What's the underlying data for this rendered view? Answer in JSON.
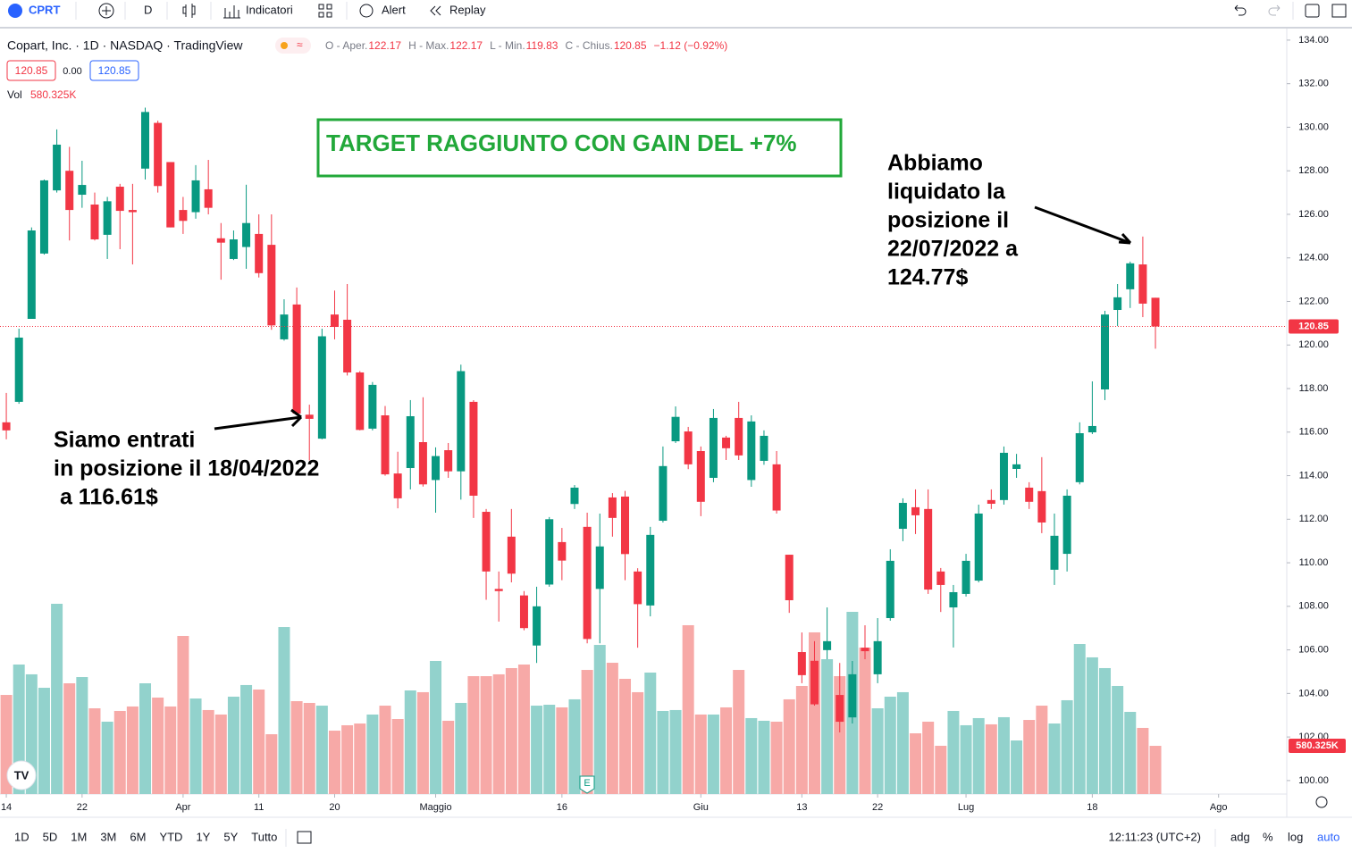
{
  "toolbar": {
    "symbol": "CPRT",
    "interval": "D",
    "indicators": "Indicatori",
    "alert": "Alert",
    "replay": "Replay"
  },
  "legend": {
    "title": "Copart, Inc. · 1D · NASDAQ · TradingView",
    "ohlc": [
      {
        "label": "O - Aper.",
        "value": "122.17"
      },
      {
        "label": "H - Max.",
        "value": "122.17"
      },
      {
        "label": "L - Min.",
        "value": "119.83"
      },
      {
        "label": "C - Chius.",
        "value": "120.85"
      },
      {
        "label": "",
        "value": "−1.12 (−0.92%)"
      }
    ],
    "bid": "120.85",
    "spread": "0.00",
    "ask": "120.85",
    "volume_title": "Vol"
  },
  "bottom_bar": {
    "ranges": [
      "1D",
      "5D",
      "1M",
      "3M",
      "6M",
      "YTD",
      "1Y",
      "5Y",
      "Tutto"
    ],
    "clock": "12:11:23 (UTC+2)",
    "options": [
      "adg",
      "%",
      "log",
      "auto"
    ]
  },
  "chart_data": {
    "type": "candlestick",
    "up_color": "#089981",
    "down_color": "#f23645",
    "volume_up_color": "#92d2cc",
    "volume_down_color": "#f7a9a7",
    "open": [
      116.45,
      117.39,
      121.2,
      124.2,
      127.1,
      128.0,
      126.9,
      126.45,
      125.06,
      127.27,
      126.2,
      128.1,
      130.2,
      128.4,
      126.2,
      126.1,
      127.15,
      124.9,
      123.95,
      124.5,
      125.1,
      124.6,
      120.26,
      121.86,
      116.8,
      115.7,
      121.4,
      121.16,
      118.74,
      116.16,
      116.77,
      114.1,
      114.35,
      115.54,
      113.8,
      115.17,
      114.2,
      117.39,
      112.34,
      108.8,
      111.2,
      108.5,
      106.2,
      109.0,
      110.95,
      112.7,
      111.65,
      108.8,
      113.0,
      113.04,
      109.6,
      108.04,
      111.93,
      115.58,
      116.03,
      115.13,
      113.9,
      115.75,
      116.65,
      113.8,
      114.68,
      114.52,
      110.37,
      105.9,
      105.5,
      105.99,
      103.93,
      102.9,
      106.1,
      104.88,
      107.46,
      111.56,
      112.55,
      112.47,
      109.6,
      107.95,
      108.57,
      109.18,
      112.88,
      112.88,
      114.31,
      113.45,
      113.29,
      109.68,
      110.41,
      113.7,
      115.99,
      117.96,
      121.61,
      122.56,
      123.7,
      122.17
    ],
    "high": [
      117.8,
      120.75,
      125.4,
      127.6,
      129.9,
      129.1,
      128.46,
      127.0,
      126.8,
      127.4,
      127.4,
      130.9,
      130.3,
      128.4,
      126.8,
      128.26,
      128.5,
      125.6,
      125.26,
      127.36,
      126.0,
      126.0,
      122.1,
      122.64,
      117.26,
      120.75,
      122.5,
      122.8,
      118.8,
      118.3,
      117.2,
      115.1,
      117.47,
      117.6,
      115.3,
      115.5,
      119.1,
      117.47,
      112.47,
      109.6,
      112.47,
      108.7,
      108.9,
      112.1,
      111.6,
      113.57,
      112.3,
      112.26,
      113.2,
      113.3,
      109.75,
      111.65,
      115.34,
      117.18,
      116.24,
      115.34,
      117.06,
      115.83,
      117.39,
      116.77,
      116.08,
      115.13,
      110.37,
      106.8,
      106.4,
      107.95,
      105.4,
      105.49,
      107.13,
      107.46,
      110.62,
      112.96,
      113.37,
      113.37,
      109.76,
      108.98,
      110.41,
      112.67,
      113.37,
      115.34,
      115.0,
      113.7,
      114.85,
      112.26,
      113.37,
      116.45,
      118.33,
      121.57,
      122.8,
      123.83,
      124.98,
      122.17
    ],
    "low": [
      115.67,
      117.3,
      121.2,
      124.15,
      127.0,
      124.8,
      126.3,
      124.8,
      123.95,
      124.4,
      123.7,
      127.6,
      127.0,
      125.4,
      125.1,
      125.8,
      126.0,
      123.0,
      123.9,
      123.5,
      123.1,
      120.7,
      120.2,
      116.77,
      114.7,
      115.67,
      120.26,
      118.6,
      116.08,
      116.08,
      114.0,
      112.5,
      113.37,
      113.5,
      112.3,
      113.9,
      112.9,
      112.06,
      108.3,
      107.3,
      109.1,
      106.9,
      105.4,
      108.9,
      109.2,
      112.47,
      106.3,
      106.3,
      111.2,
      109.2,
      106.1,
      107.54,
      111.85,
      115.5,
      114.3,
      112.14,
      113.7,
      114.72,
      114.72,
      113.49,
      114.5,
      112.26,
      107.7,
      104.47,
      103.44,
      105.57,
      102.21,
      102.62,
      105.57,
      104.47,
      107.34,
      110.99,
      111.32,
      108.57,
      107.74,
      106.11,
      108.45,
      109.1,
      112.47,
      112.67,
      113.9,
      112.47,
      111.36,
      108.98,
      109.6,
      113.6,
      115.91,
      117.47,
      120.87,
      121.7,
      121.28,
      119.83
    ],
    "close": [
      116.08,
      120.34,
      125.26,
      127.56,
      129.2,
      126.2,
      127.35,
      124.85,
      126.6,
      126.16,
      126.1,
      130.7,
      127.3,
      125.4,
      125.7,
      127.56,
      126.3,
      124.7,
      124.85,
      125.6,
      123.3,
      120.9,
      121.4,
      116.85,
      116.61,
      120.4,
      120.83,
      118.74,
      116.1,
      118.17,
      114.06,
      112.96,
      116.73,
      113.6,
      114.9,
      114.2,
      118.8,
      113.08,
      109.6,
      108.7,
      109.5,
      107.0,
      108.0,
      112.0,
      110.1,
      113.45,
      106.5,
      110.75,
      112.06,
      110.4,
      108.1,
      111.28,
      114.44,
      116.7,
      114.52,
      112.8,
      116.65,
      115.26,
      114.93,
      116.49,
      115.83,
      112.4,
      108.28,
      104.84,
      103.5,
      106.4,
      102.7,
      104.88,
      105.94,
      106.4,
      110.09,
      112.75,
      112.18,
      108.77,
      108.98,
      108.65,
      110.09,
      112.26,
      112.71,
      115.05,
      114.52,
      112.8,
      111.85,
      111.24,
      113.08,
      115.95,
      116.28,
      121.4,
      122.19,
      123.75,
      121.9,
      120.85
    ],
    "volume": [
      1193,
      1559,
      1441,
      1279,
      2290,
      1333,
      1408,
      1032,
      871,
      1000,
      1054,
      1333,
      1161,
      1054,
      1903,
      1150,
      1011,
      957,
      1172,
      1312,
      1258,
      720,
      2010,
      1118,
      1097,
      1064,
      763,
      828,
      849,
      957,
      1064,
      903,
      1247,
      1226,
      1602,
      882,
      1097,
      1419,
      1419,
      1441,
      1516,
      1559,
      1064,
      1075,
      1043,
      1140,
      1494,
      1795,
      1580,
      1387,
      1226,
      1462,
      1000,
      1011,
      2032,
      957,
      957,
      1043,
      1494,
      914,
      882,
      871,
      1140,
      1301,
      1946,
      1623,
      1419,
      2193,
      1763,
      1032,
      1172,
      1226,
      731,
      871,
      581,
      1000,
      828,
      914,
      839,
      925,
      645,
      892,
      1064,
      849,
      1129,
      1806,
      1645,
      1516,
      1301,
      989,
      796,
      580.325
    ],
    "last_volume_label": "580.325K",
    "xlim": [
      -0.5,
      101.4
    ],
    "xticks": [
      {
        "value": 0,
        "label": "14"
      },
      {
        "value": 6,
        "label": "22"
      },
      {
        "value": 14,
        "label": "Apr"
      },
      {
        "value": 20,
        "label": "11"
      },
      {
        "value": 26,
        "label": "20"
      },
      {
        "value": 34,
        "label": "Maggio"
      },
      {
        "value": 44,
        "label": "16"
      },
      {
        "value": 55,
        "label": "Giu"
      },
      {
        "value": 63,
        "label": "13"
      },
      {
        "value": 69,
        "label": "22"
      },
      {
        "value": 76,
        "label": "Lug"
      },
      {
        "value": 86,
        "label": "18"
      },
      {
        "value": 96,
        "label": "Ago"
      }
    ],
    "ylim": [
      99.38,
      134.53
    ],
    "yticks": [
      {
        "value": 100,
        "label": "100.00"
      },
      {
        "value": 102,
        "label": "102.00"
      },
      {
        "value": 104,
        "label": "104.00"
      },
      {
        "value": 106,
        "label": "106.00"
      },
      {
        "value": 108,
        "label": "108.00"
      },
      {
        "value": 110,
        "label": "110.00"
      },
      {
        "value": 112,
        "label": "112.00"
      },
      {
        "value": 114,
        "label": "114.00"
      },
      {
        "value": 116,
        "label": "116.00"
      },
      {
        "value": 118,
        "label": "118.00"
      },
      {
        "value": 120,
        "label": "120.00"
      },
      {
        "value": 122,
        "label": "122.00"
      },
      {
        "value": 124,
        "label": "124.00"
      },
      {
        "value": 126,
        "label": "126.00"
      },
      {
        "value": 128,
        "label": "128.00"
      },
      {
        "value": 130,
        "label": "130.00"
      },
      {
        "value": 132,
        "label": "132.00"
      },
      {
        "value": 134,
        "label": "134.00"
      }
    ],
    "y2lim": [
      0,
      9213
    ],
    "annotations": {
      "target": "TARGET RAGGIUNTO CON GAIN DEL +7%",
      "exit": [
        "Abbiamo",
        "liquidato la",
        "posizione il",
        "22/07/2022 a",
        "124.77$"
      ],
      "entry": [
        "Siamo entrati",
        "in posizione il 18/04/2022",
        " a 116.61$"
      ]
    }
  }
}
